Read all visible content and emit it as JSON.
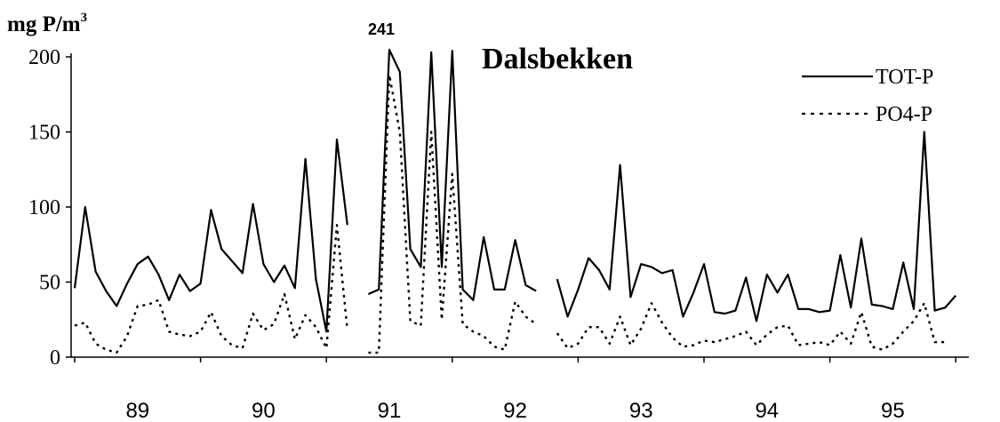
{
  "chart_data": {
    "type": "line",
    "title": "Dalsbekken",
    "ylabel": "mg P/m",
    "ylabel_sup": "3",
    "xlabel": "",
    "ylim": [
      0,
      200
    ],
    "yticks": [
      0,
      50,
      100,
      150,
      200
    ],
    "x_tick_labels": [
      "89",
      "90",
      "91",
      "92",
      "93",
      "94",
      "95"
    ],
    "grid": false,
    "legend_position": "top-right",
    "annotation": "241",
    "series": [
      {
        "name": "TOT-P",
        "style": "solid",
        "color": "#000000",
        "values": [
          46,
          100,
          57,
          44,
          34,
          49,
          62,
          67,
          55,
          38,
          55,
          44,
          49,
          98,
          72,
          64,
          56,
          102,
          62,
          50,
          61,
          46,
          132,
          52,
          17,
          145,
          88,
          null,
          42,
          45,
          241,
          190,
          72,
          60,
          203,
          60,
          204,
          45,
          38,
          80,
          45,
          45,
          78,
          48,
          44,
          null,
          52,
          27,
          45,
          66,
          58,
          45,
          128,
          40,
          62,
          60,
          56,
          58,
          27,
          43,
          62,
          30,
          29,
          31,
          53,
          24,
          55,
          43,
          55,
          32,
          32,
          30,
          31,
          68,
          33,
          79,
          35,
          34,
          32,
          63,
          32,
          150,
          31,
          33,
          41
        ],
        "breaks_before": [
          27,
          46
        ]
      },
      {
        "name": "PO4-P",
        "style": "dotted",
        "color": "#000000",
        "values": [
          21,
          23,
          9,
          5,
          3,
          14,
          34,
          35,
          38,
          17,
          15,
          14,
          17,
          30,
          14,
          8,
          6,
          29,
          18,
          22,
          42,
          12,
          28,
          20,
          6,
          88,
          18,
          null,
          3,
          3,
          188,
          150,
          24,
          21,
          150,
          25,
          122,
          22,
          17,
          14,
          7,
          5,
          37,
          27,
          22,
          null,
          16,
          6,
          9,
          20,
          20,
          9,
          27,
          8,
          19,
          36,
          23,
          13,
          7,
          8,
          11,
          10,
          12,
          14,
          17,
          8,
          15,
          20,
          21,
          8,
          9,
          10,
          8,
          17,
          9,
          30,
          7,
          5,
          9,
          17,
          24,
          36,
          10,
          10,
          null
        ],
        "breaks_before": [
          27,
          46
        ]
      }
    ]
  }
}
